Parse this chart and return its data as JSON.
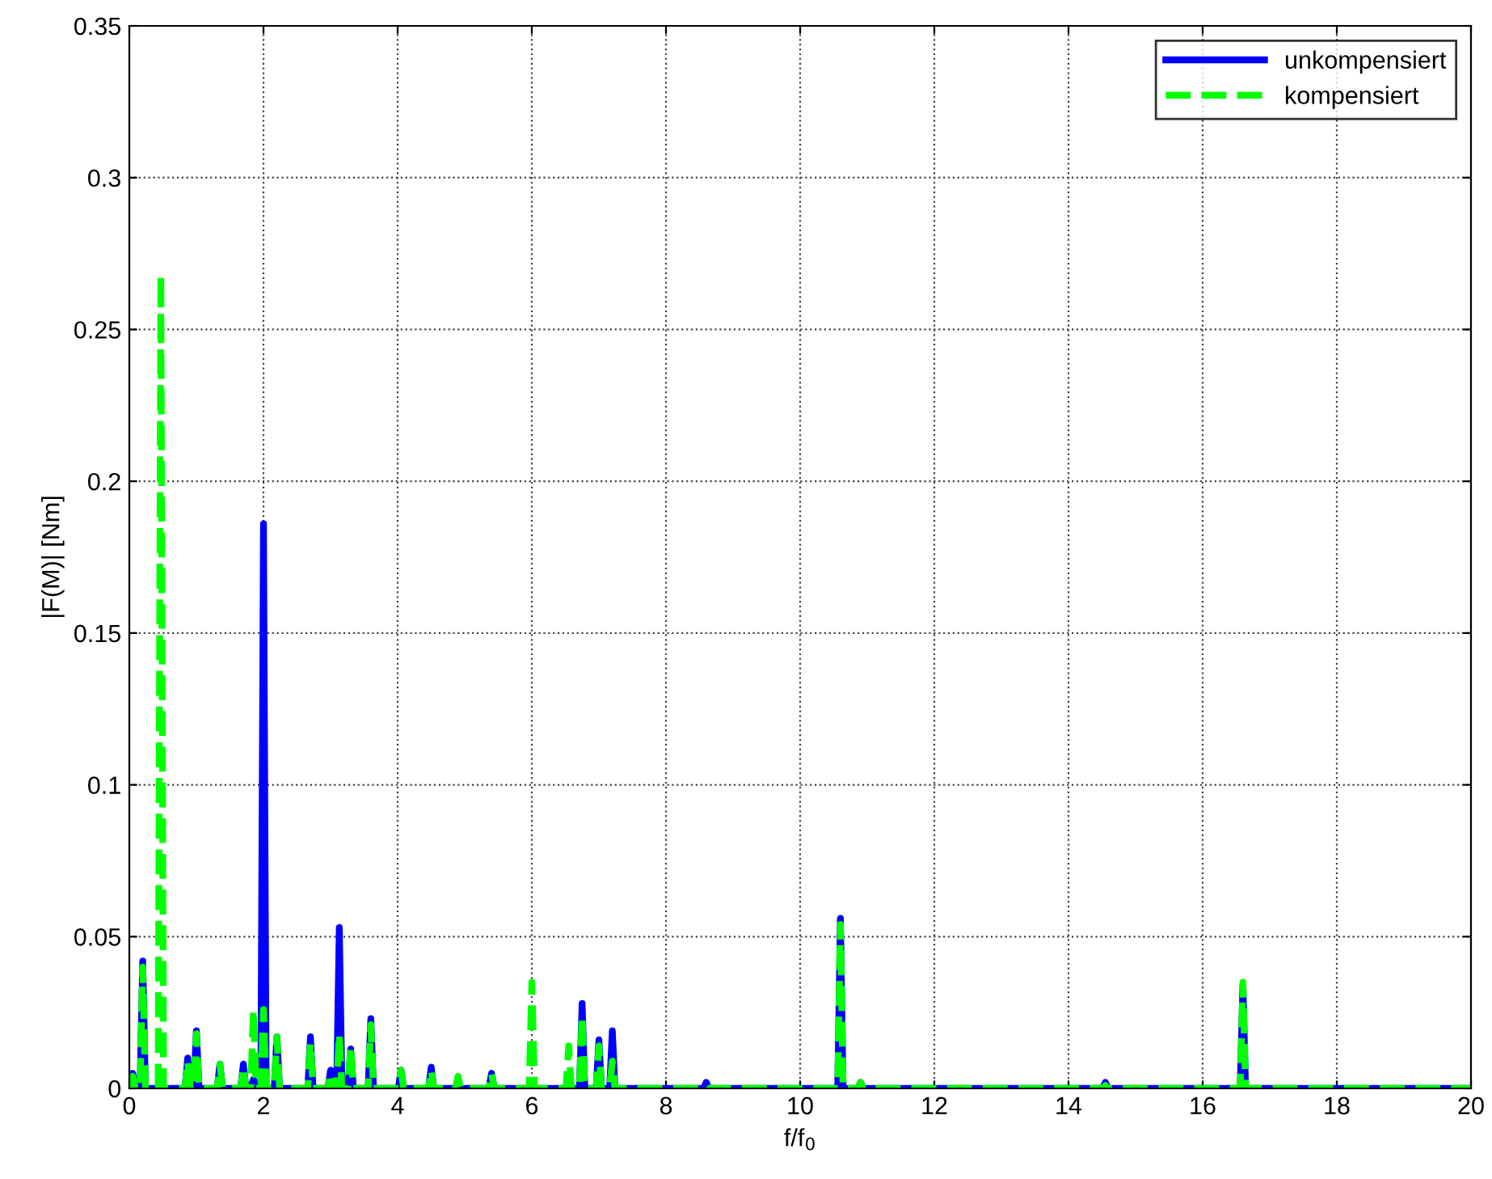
{
  "chart_data": {
    "type": "line",
    "xlabel": "f/f$_{0}$",
    "ylabel": "|F(M)| [Nm]",
    "x": [
      0,
      0.01,
      0.05,
      0.09,
      0.16,
      0.2,
      0.24,
      0.43,
      0.47,
      0.51,
      0.83,
      0.87,
      0.91,
      0.96,
      1.0,
      1.04,
      1.31,
      1.35,
      1.39,
      1.66,
      1.7,
      1.74,
      1.81,
      1.85,
      1.89,
      1.96,
      2.0,
      2.04,
      2.16,
      2.2,
      2.24,
      2.66,
      2.7,
      2.74,
      2.96,
      3.0,
      3.04,
      3.09,
      3.13,
      3.17,
      3.26,
      3.3,
      3.34,
      3.56,
      3.6,
      3.64,
      4.01,
      4.05,
      4.09,
      4.46,
      4.5,
      4.54,
      4.86,
      4.9,
      4.94,
      5.36,
      5.4,
      5.44,
      5.96,
      6.0,
      6.04,
      6.51,
      6.55,
      6.59,
      6.71,
      6.75,
      6.79,
      6.96,
      7.0,
      7.04,
      7.16,
      7.2,
      7.24,
      8.56,
      8.6,
      8.64,
      10.56,
      10.6,
      10.64,
      10.86,
      10.9,
      10.94,
      14.51,
      14.55,
      14.59,
      16.56,
      16.6,
      16.64,
      20
    ],
    "series": [
      {
        "name": "unkompensiert",
        "color": "#0000ff",
        "line_style": "solid",
        "values": [
          0,
          0,
          0.005,
          0,
          0,
          0.042,
          0,
          0,
          null,
          0,
          0,
          0.01,
          0,
          0,
          0.019,
          0,
          0,
          0.008,
          0,
          0,
          0.008,
          0,
          0,
          0.003,
          0,
          0,
          0.186,
          0,
          0,
          0.017,
          0,
          0,
          0.017,
          0,
          0,
          0.006,
          0,
          0,
          0.053,
          0,
          0,
          0.013,
          0,
          0,
          0.023,
          0,
          0,
          0.006,
          0,
          0,
          0.007,
          0,
          0,
          null,
          0,
          0,
          0.005,
          0,
          0,
          null,
          0,
          0,
          null,
          0,
          0,
          0.028,
          0,
          0,
          0.016,
          0,
          0,
          0.019,
          0,
          0,
          0.002,
          0,
          0,
          0.056,
          0,
          0,
          0.002,
          0,
          0,
          0.002,
          0,
          0,
          0.034,
          0,
          0
        ]
      },
      {
        "name": "kompensiert",
        "color": "#00ff00",
        "line_style": "dashed",
        "values": [
          0,
          0,
          0.004,
          0,
          0,
          0.04,
          0,
          0,
          0.268,
          0,
          0,
          0.009,
          0,
          0,
          0.018,
          0,
          0,
          0.008,
          0,
          0,
          0.007,
          0,
          0,
          0.026,
          0,
          0,
          0.026,
          0,
          0,
          0.017,
          0,
          0,
          0.015,
          0,
          0,
          0.005,
          0,
          0,
          0.018,
          0,
          0,
          0.014,
          0,
          0,
          0.021,
          0,
          0,
          0.006,
          0,
          0,
          0.006,
          0,
          0,
          0.004,
          0,
          0,
          0.005,
          0,
          0,
          0.035,
          0,
          0,
          0.014,
          0,
          0,
          0.024,
          0,
          0,
          0.014,
          0,
          0,
          0.009,
          0,
          0,
          0.001,
          0,
          0,
          0.054,
          0,
          0,
          0.002,
          0,
          0,
          0.001,
          0,
          0,
          0.035,
          0,
          0
        ]
      }
    ],
    "xlim": [
      0,
      20
    ],
    "xticks": [
      0,
      2,
      4,
      6,
      8,
      10,
      12,
      14,
      16,
      18,
      20
    ],
    "ylim": [
      0,
      0.35
    ],
    "yticks": [
      0,
      0.05,
      0.1,
      0.15,
      0.2,
      0.25,
      0.3,
      0.35
    ],
    "grid": true,
    "legend": "top right"
  }
}
